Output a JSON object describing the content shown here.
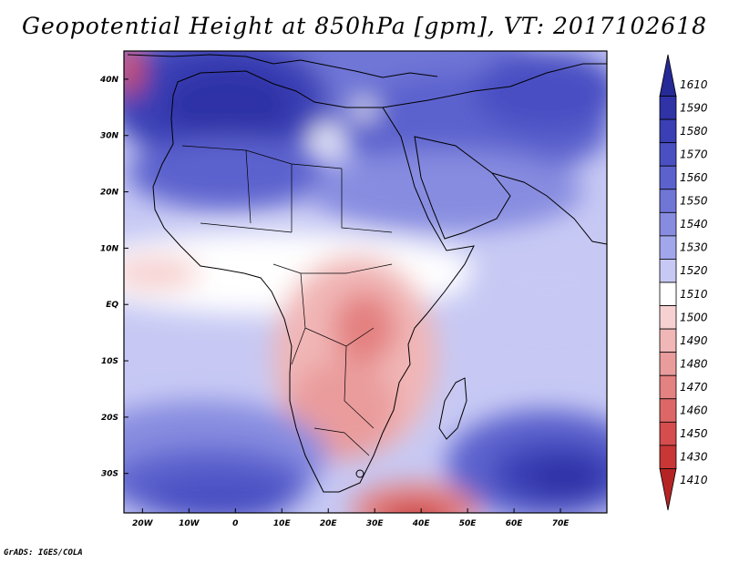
{
  "title": "Geopotential Height at 850hPa [gpm], VT: 2017102618",
  "credit": "GrADS: IGES/COLA",
  "map": {
    "variable": "Geopotential Height",
    "level": "850hPa",
    "units": "gpm",
    "valid_time": "2017102618",
    "lon_range": [
      -24,
      80
    ],
    "lat_range": [
      -37,
      45
    ],
    "lat_ticks": [
      {
        "value": 40,
        "label": "40N"
      },
      {
        "value": 30,
        "label": "30N"
      },
      {
        "value": 20,
        "label": "20N"
      },
      {
        "value": 10,
        "label": "10N"
      },
      {
        "value": 0,
        "label": "EQ"
      },
      {
        "value": -10,
        "label": "10S"
      },
      {
        "value": -20,
        "label": "20S"
      },
      {
        "value": -30,
        "label": "30S"
      }
    ],
    "lon_ticks": [
      {
        "value": -20,
        "label": "20W"
      },
      {
        "value": -10,
        "label": "10W"
      },
      {
        "value": 0,
        "label": "0"
      },
      {
        "value": 10,
        "label": "10E"
      },
      {
        "value": 20,
        "label": "20E"
      },
      {
        "value": 30,
        "label": "30E"
      },
      {
        "value": 40,
        "label": "40E"
      },
      {
        "value": 50,
        "label": "50E"
      },
      {
        "value": 60,
        "label": "60E"
      },
      {
        "value": 70,
        "label": "70E"
      }
    ]
  },
  "colorbar": {
    "levels": [
      {
        "label": "1610",
        "color": "#262a96"
      },
      {
        "label": "1590",
        "color": "#2f33a6"
      },
      {
        "label": "1580",
        "color": "#3a3fb5"
      },
      {
        "label": "1570",
        "color": "#4a50c2"
      },
      {
        "label": "1560",
        "color": "#5c62cd"
      },
      {
        "label": "1550",
        "color": "#7076d6"
      },
      {
        "label": "1540",
        "color": "#878ce0"
      },
      {
        "label": "1530",
        "color": "#a2a6ea"
      },
      {
        "label": "1520",
        "color": "#c7c9f4"
      },
      {
        "label": "1510",
        "color": "#ffffff"
      },
      {
        "label": "1500",
        "color": "#f7d1d1"
      },
      {
        "label": "1490",
        "color": "#f1b6b6"
      },
      {
        "label": "1480",
        "color": "#ea9c9c"
      },
      {
        "label": "1470",
        "color": "#e48181"
      },
      {
        "label": "1460",
        "color": "#dd6767"
      },
      {
        "label": "1450",
        "color": "#d54d4d"
      },
      {
        "label": "1430",
        "color": "#c83636"
      },
      {
        "label": "1410",
        "color": "#b52424"
      }
    ]
  }
}
